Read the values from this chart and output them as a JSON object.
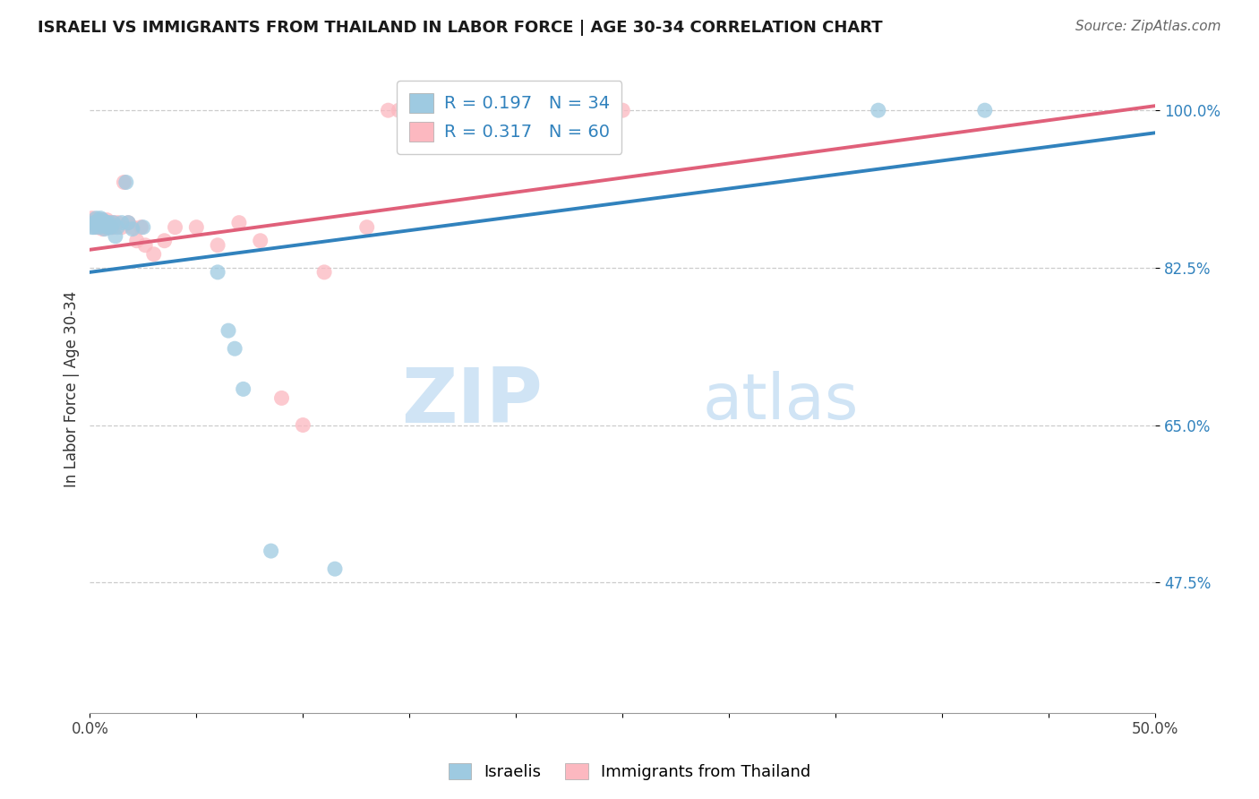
{
  "title": "ISRAELI VS IMMIGRANTS FROM THAILAND IN LABOR FORCE | AGE 30-34 CORRELATION CHART",
  "source": "Source: ZipAtlas.com",
  "ylabel": "In Labor Force | Age 30-34",
  "xlim": [
    0.0,
    0.5
  ],
  "ylim": [
    0.33,
    1.05
  ],
  "xticks": [
    0.0,
    0.05,
    0.1,
    0.15,
    0.2,
    0.25,
    0.3,
    0.35,
    0.4,
    0.45,
    0.5
  ],
  "xticklabels": [
    "0.0%",
    "",
    "",
    "",
    "",
    "",
    "",
    "",
    "",
    "",
    "50.0%"
  ],
  "yticks": [
    0.475,
    0.65,
    0.825,
    1.0
  ],
  "yticklabels": [
    "47.5%",
    "65.0%",
    "82.5%",
    "100.0%"
  ],
  "legend_r_blue": "R = 0.197",
  "legend_n_blue": "N = 34",
  "legend_r_pink": "R = 0.317",
  "legend_n_pink": "N = 60",
  "blue_scatter_color": "#9ecae1",
  "pink_scatter_color": "#fcb8c0",
  "blue_line_color": "#3182bd",
  "pink_line_color": "#e0607a",
  "blue_line_x": [
    0.0,
    0.5
  ],
  "blue_line_y": [
    0.82,
    0.975
  ],
  "pink_line_x": [
    0.0,
    0.5
  ],
  "pink_line_y": [
    0.845,
    1.005
  ],
  "israelis_x": [
    0.001,
    0.002,
    0.002,
    0.003,
    0.003,
    0.004,
    0.004,
    0.005,
    0.005,
    0.006,
    0.006,
    0.007,
    0.007,
    0.008,
    0.008,
    0.009,
    0.009,
    0.01,
    0.011,
    0.012,
    0.013,
    0.015,
    0.017,
    0.018,
    0.02,
    0.025,
    0.06,
    0.065,
    0.068,
    0.072,
    0.085,
    0.115,
    0.37,
    0.42
  ],
  "israelis_y": [
    0.87,
    0.875,
    0.87,
    0.875,
    0.88,
    0.87,
    0.878,
    0.875,
    0.88,
    0.872,
    0.878,
    0.868,
    0.876,
    0.87,
    0.875,
    0.87,
    0.875,
    0.87,
    0.875,
    0.86,
    0.87,
    0.875,
    0.92,
    0.875,
    0.868,
    0.87,
    0.82,
    0.755,
    0.735,
    0.69,
    0.51,
    0.49,
    1.0,
    1.0
  ],
  "thailand_x": [
    0.001,
    0.001,
    0.002,
    0.002,
    0.002,
    0.003,
    0.003,
    0.003,
    0.003,
    0.004,
    0.004,
    0.004,
    0.005,
    0.005,
    0.005,
    0.006,
    0.006,
    0.006,
    0.007,
    0.007,
    0.007,
    0.008,
    0.008,
    0.008,
    0.009,
    0.009,
    0.009,
    0.01,
    0.01,
    0.011,
    0.011,
    0.013,
    0.015,
    0.016,
    0.018,
    0.02,
    0.022,
    0.024,
    0.026,
    0.03,
    0.035,
    0.04,
    0.05,
    0.06,
    0.07,
    0.08,
    0.09,
    0.1,
    0.11,
    0.13,
    0.14,
    0.145,
    0.15,
    0.16,
    0.17,
    0.18,
    0.19,
    0.2,
    0.21,
    0.25
  ],
  "thailand_y": [
    0.875,
    0.88,
    0.875,
    0.875,
    0.878,
    0.875,
    0.87,
    0.875,
    0.878,
    0.875,
    0.87,
    0.875,
    0.87,
    0.875,
    0.878,
    0.868,
    0.875,
    0.878,
    0.875,
    0.87,
    0.875,
    0.87,
    0.875,
    0.878,
    0.87,
    0.875,
    0.875,
    0.87,
    0.875,
    0.87,
    0.875,
    0.875,
    0.87,
    0.92,
    0.875,
    0.87,
    0.855,
    0.87,
    0.85,
    0.84,
    0.855,
    0.87,
    0.87,
    0.85,
    0.875,
    0.855,
    0.68,
    0.65,
    0.82,
    0.87,
    1.0,
    1.0,
    1.0,
    1.0,
    1.0,
    1.0,
    1.0,
    1.0,
    1.0,
    1.0
  ],
  "watermark_zip": "ZIP",
  "watermark_atlas": "atlas",
  "watermark_color": "#d0e4f5"
}
